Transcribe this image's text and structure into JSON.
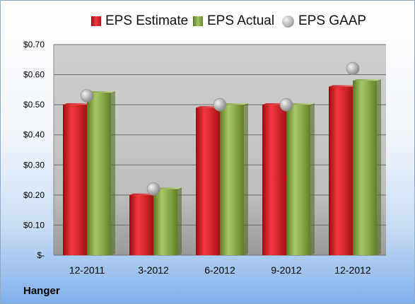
{
  "chart_data": {
    "type": "bar",
    "categories": [
      "12-2011",
      "3-2012",
      "6-2012",
      "9-2012",
      "12-2012"
    ],
    "series": [
      {
        "name": "EPS Estimate",
        "values": [
          0.5,
          0.2,
          0.49,
          0.5,
          0.56
        ],
        "color": "#d7262b"
      },
      {
        "name": "EPS Actual",
        "values": [
          0.54,
          0.22,
          0.5,
          0.5,
          0.58
        ],
        "color": "#8cae4c"
      },
      {
        "name": "EPS GAAP",
        "values": [
          0.53,
          0.22,
          0.5,
          0.5,
          0.62
        ],
        "color": "#b8b8b8",
        "marker": "sphere"
      }
    ],
    "ylim": [
      0,
      0.7
    ],
    "yticks": [
      {
        "value": 0.7,
        "label": "$0.70"
      },
      {
        "value": 0.6,
        "label": "$0.60"
      },
      {
        "value": 0.5,
        "label": "$0.50"
      },
      {
        "value": 0.4,
        "label": "$0.40"
      },
      {
        "value": 0.3,
        "label": "$0.30"
      },
      {
        "value": 0.2,
        "label": "$0.20"
      },
      {
        "value": 0.1,
        "label": "$0.10"
      },
      {
        "value": 0.0,
        "label": "$-"
      }
    ],
    "grid": true,
    "legend_position": "top"
  },
  "company": "Hanger"
}
